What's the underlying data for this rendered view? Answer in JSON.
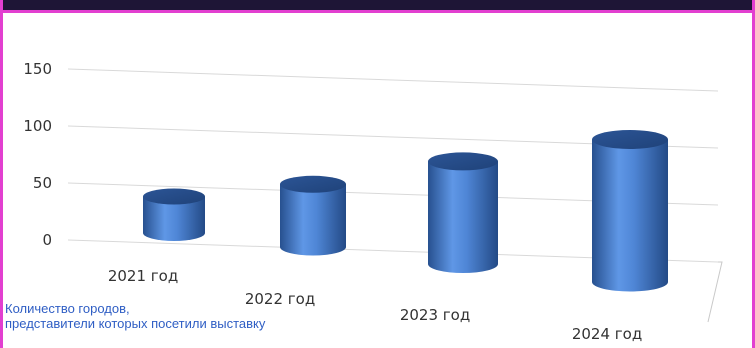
{
  "chart_data": {
    "type": "bar",
    "style": "3d-cylinder",
    "categories": [
      "2021 год",
      "2022 год",
      "2023 год",
      "2024 год"
    ],
    "values": [
      32,
      55,
      90,
      125
    ],
    "ylim": [
      0,
      150
    ],
    "yticks": [
      0,
      50,
      100,
      150
    ],
    "grid": true,
    "bar_color": "#4a7fd4"
  },
  "caption": {
    "line1": "Количество городов,",
    "line2": "представители которых посетили выставку"
  },
  "colors": {
    "accent": "#e23fd0",
    "band": "#1e1536",
    "caption": "#2f5ec4"
  }
}
